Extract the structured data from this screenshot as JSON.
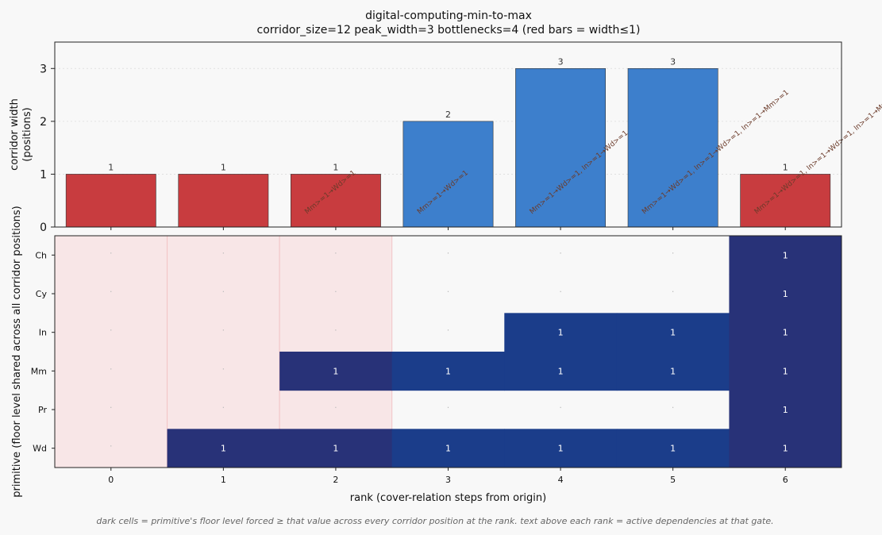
{
  "title": "digital-computing-min-to-max",
  "subtitle": "corridor_size=12  peak_width=3  bottlenecks=4  (red bars = width≤1)",
  "caption": "dark cells = primitive's floor level forced ≥ that value across every corridor position at the rank.  text above each rank = active dependencies at that gate.",
  "colors": {
    "bottleneck": "#c83c3f",
    "normal": "#3d7fcc",
    "heat_dark": "#283278",
    "heat_mid": "#1b3d8a",
    "bottleneck_shade": "#f8e6e7",
    "background": "#f8f8f8"
  },
  "chart_data": [
    {
      "type": "bar",
      "ylabel": "corridor width\n(positions)",
      "ylim": [
        0,
        3.5
      ],
      "yticks": [
        0,
        1,
        2,
        3
      ],
      "categories": [
        "0",
        "1",
        "2",
        "3",
        "4",
        "5",
        "6"
      ],
      "values": [
        1,
        1,
        1,
        2,
        3,
        3,
        1
      ],
      "bottleneck": [
        true,
        true,
        true,
        false,
        false,
        false,
        true
      ],
      "annotations": [
        "",
        "",
        "Mm>=1→Wd>=1",
        "Mm>=1→Wd>=1",
        "Mm>=1→Wd>=1, In>=1→Wd>=1, In>=1→Mm>=1",
        "Mm>=1→Wd>=1, In>=1→Wd>=1, In>=1→Mm>=1",
        "Mm>=1→Wd>=1, In>=1→Wd>=1, In>=1→Mm>=1, +5"
      ],
      "grid": true
    },
    {
      "type": "heatmap",
      "xlabel": "rank (cover-relation steps from origin)",
      "ylabel": "primitive (floor level shared across all corridor positions)",
      "x": [
        "0",
        "1",
        "2",
        "3",
        "4",
        "5",
        "6"
      ],
      "y": [
        "Ch",
        "Cy",
        "In",
        "Mm",
        "Pr",
        "Wd"
      ],
      "values": [
        [
          0,
          0,
          0,
          0,
          0,
          0,
          1
        ],
        [
          0,
          0,
          0,
          0,
          0,
          0,
          1
        ],
        [
          0,
          0,
          0,
          0,
          1,
          1,
          1
        ],
        [
          0,
          0,
          1,
          1,
          1,
          1,
          1
        ],
        [
          0,
          0,
          0,
          0,
          0,
          0,
          1
        ],
        [
          0,
          1,
          1,
          1,
          1,
          1,
          1
        ]
      ],
      "zero_label": "·"
    }
  ]
}
